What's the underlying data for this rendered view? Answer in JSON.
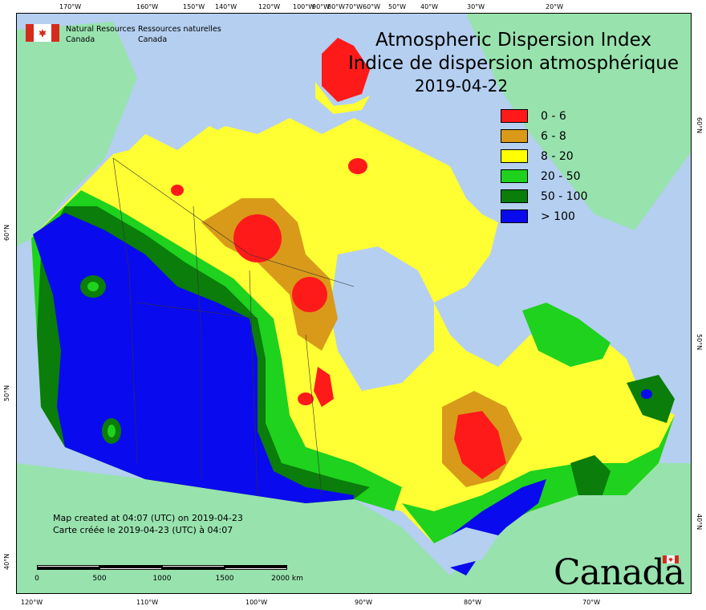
{
  "map": {
    "title_en": "Atmospheric Dispersion Index",
    "title_fr": "Indice de dispersion atmosphérique",
    "date": "2019-04-22",
    "agency_en": [
      "Natural Resources",
      "Canada"
    ],
    "agency_fr": [
      "Ressources naturelles",
      "Canada"
    ],
    "created_en": "Map created at 04:07 (UTC) on 2019-04-23",
    "created_fr": "Carte créée le 2019-04-23 (UTC) à 04:07",
    "wordmark": "Canada",
    "legend": [
      {
        "label": "0 - 6",
        "color": "#ff1a1a"
      },
      {
        "label": "6 - 8",
        "color": "#d99a1a"
      },
      {
        "label": "8 - 20",
        "color": "#ffff00"
      },
      {
        "label": "20 - 50",
        "color": "#1ed21e"
      },
      {
        "label": "50 - 100",
        "color": "#0a7d0a"
      },
      {
        "label": "> 100",
        "color": "#0a0aee"
      }
    ],
    "top_ticks": [
      "170°W",
      "160°W",
      "150°W",
      "140°W",
      "120°W",
      "100°W",
      "90°W",
      "80°W",
      "70°W",
      "60°W",
      "50°W",
      "40°W",
      "30°W",
      "20°W"
    ],
    "bottom_ticks": [
      "120°W",
      "110°W",
      "100°W",
      "90°W",
      "80°W",
      "70°W"
    ],
    "left_ticks": [
      "60°N",
      "50°N",
      "40°N"
    ],
    "right_ticks": [
      "60°N",
      "50°N",
      "40°N"
    ],
    "scale": {
      "labels": [
        "0",
        "500",
        "1000",
        "1500",
        "2000"
      ],
      "unit": "km"
    },
    "colors": {
      "ocean": "#b4cff0",
      "land_other": "#98e2ae",
      "water_inland": "#c7dcf5"
    }
  }
}
